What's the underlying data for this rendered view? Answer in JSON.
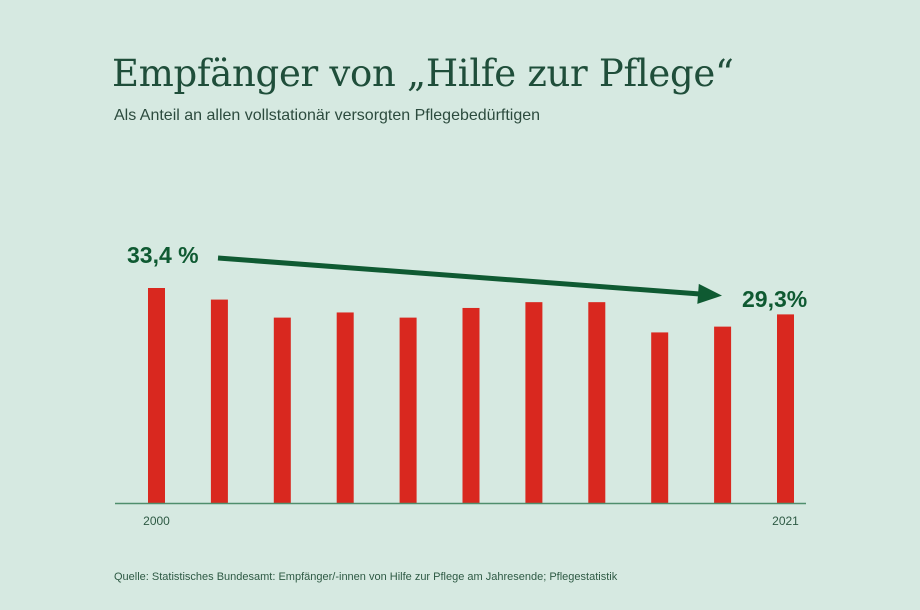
{
  "title": "Empfänger von „Hilfe zur Pflege“",
  "subtitle": "Als Anteil an allen vollstationär versorgten Pflegebedürftigen",
  "source": "Quelle: Statistisches Bundesamt: Empfänger/-innen von Hilfe zur Pflege am Jahresende; Pflegestatistik",
  "colors": {
    "bar": "#d9281f",
    "accent": "#0f5a32",
    "background": "#d6e9e1"
  },
  "chart_data": {
    "type": "bar",
    "categories": [
      "2000",
      "",
      "",
      "",
      "",
      "",
      "",
      "",
      "",
      "",
      "2021"
    ],
    "values": [
      33.4,
      31.6,
      28.8,
      29.6,
      28.8,
      30.3,
      31.2,
      31.2,
      26.5,
      27.4,
      29.3
    ],
    "tick_labels": [
      "2000",
      "2021"
    ],
    "annotations": [
      {
        "label": "33,4 %",
        "bar_index": 0
      },
      {
        "label": "29,3%",
        "bar_index": 10
      }
    ],
    "trend_arrow": {
      "from_index": 0,
      "to_index": 10
    },
    "ylim": [
      0,
      33.4
    ],
    "grid": false,
    "legend": "none"
  }
}
